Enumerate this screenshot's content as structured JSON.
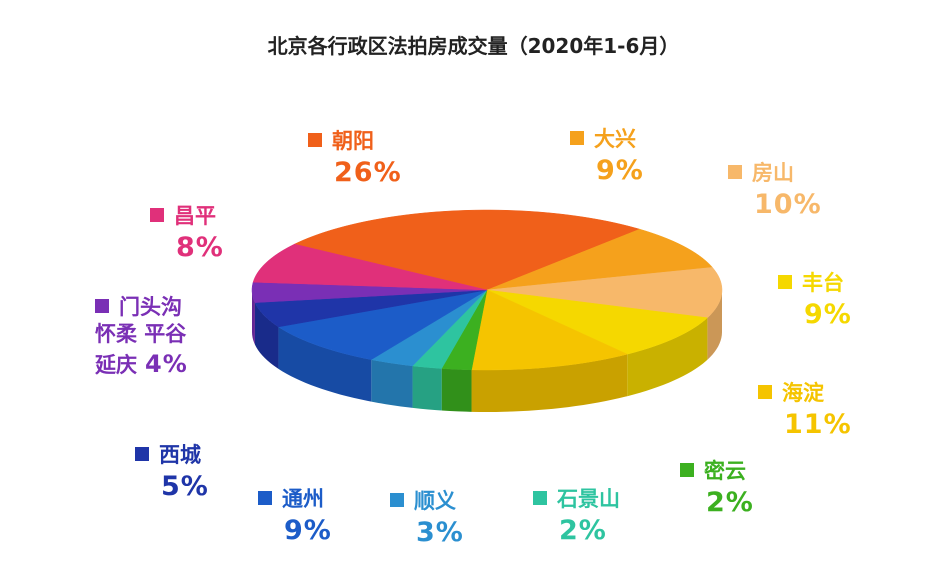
{
  "chart_data": {
    "type": "pie",
    "title": "北京各行政区法拍房成交量（2020年1-6月）",
    "categories": [
      "朝阳",
      "大兴",
      "房山",
      "丰台",
      "海淀",
      "密云",
      "石景山",
      "顺义",
      "通州",
      "西城",
      "门头沟\n怀柔 平谷\n延庆",
      "昌平"
    ],
    "values": [
      26,
      9,
      10,
      9,
      11,
      2,
      2,
      3,
      9,
      5,
      4,
      8
    ],
    "value_labels": [
      "26%",
      "9%",
      "10%",
      "9%",
      "11%",
      "2%",
      "2%",
      "3%",
      "9%",
      "5%",
      "4%",
      "8%"
    ],
    "colors": [
      "#f0601a",
      "#f5a11c",
      "#f7b86a",
      "#f5d800",
      "#f5c400",
      "#3cb020",
      "#2ec4a0",
      "#2b8fd0",
      "#1c5cc8",
      "#1f35a8",
      "#7a2fb5",
      "#e0307a"
    ]
  }
}
